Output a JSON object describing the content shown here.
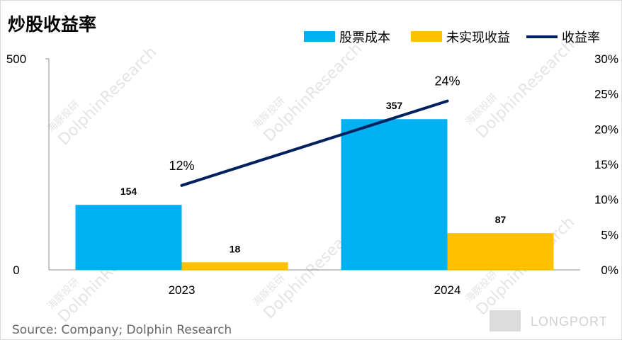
{
  "chart_data": {
    "type": "bar",
    "title": "炒股收益率",
    "categories": [
      "2023",
      "2024"
    ],
    "series": [
      {
        "name": "股票成本",
        "type": "bar",
        "axis": "left",
        "color": "#00b0f0",
        "values": [
          154,
          357
        ],
        "labels": [
          "154",
          "357"
        ]
      },
      {
        "name": "未实现收益",
        "type": "bar",
        "axis": "left",
        "color": "#ffc000",
        "values": [
          18,
          87
        ],
        "labels": [
          "18",
          "87"
        ]
      },
      {
        "name": "收益率",
        "type": "line",
        "axis": "right",
        "color": "#002060",
        "values": [
          0.12,
          0.24
        ],
        "labels": [
          "12%",
          "24%"
        ]
      }
    ],
    "ylim_left": [
      0,
      500
    ],
    "ytick_labels_left": [
      {
        "value": 0,
        "label": "0"
      },
      {
        "value": 500,
        "label": "500"
      }
    ],
    "ylim_right": [
      0,
      0.3
    ],
    "ytick_labels_right": [
      {
        "value": 0,
        "label": "0%"
      },
      {
        "value": 0.05,
        "label": "5%"
      },
      {
        "value": 0.1,
        "label": "10%"
      },
      {
        "value": 0.15,
        "label": "15%"
      },
      {
        "value": 0.2,
        "label": "20%"
      },
      {
        "value": 0.25,
        "label": "25%"
      },
      {
        "value": 0.3,
        "label": "30%"
      }
    ],
    "grid": false,
    "legend_position": "top-right"
  },
  "source": "Source: Company; Dolphin Research",
  "watermark": {
    "cn": "海豚投研",
    "en": "DolphinResearch",
    "brand": "LONGPORT"
  }
}
